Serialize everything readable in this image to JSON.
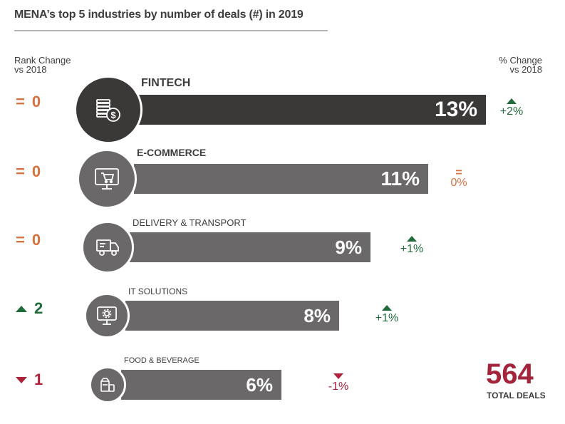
{
  "title": "MENA’s top 5 industries by number of deals (#) in 2019",
  "header_left": [
    "Rank Change",
    "vs 2018"
  ],
  "header_right": [
    "% Change",
    "vs 2018"
  ],
  "colors": {
    "orange": "#d8703f",
    "green": "#1f6b3a",
    "red": "#b0203a",
    "bar_dark": "#3b3838",
    "bar_gray": "#6a6868"
  },
  "chart_data": {
    "type": "bar",
    "title": "MENA’s top 5 industries by number of deals (#) in 2019",
    "categories": [
      "FINTECH",
      "E-COMMERCE",
      "DELIVERY & TRANSPORT",
      "IT SOLUTIONS",
      "FOOD & BEVERAGE"
    ],
    "values": [
      13,
      11,
      9,
      8,
      6
    ],
    "value_labels": [
      "13%",
      "11%",
      "9%",
      "8%",
      "6%"
    ],
    "rank_change": [
      {
        "symbol": "=",
        "value": "0",
        "direction": "same"
      },
      {
        "symbol": "=",
        "value": "0",
        "direction": "same"
      },
      {
        "symbol": "=",
        "value": "0",
        "direction": "same"
      },
      {
        "symbol": "▲",
        "value": "2",
        "direction": "up"
      },
      {
        "symbol": "▼",
        "value": "1",
        "direction": "down"
      }
    ],
    "pct_change": [
      {
        "label": "+2%",
        "direction": "up"
      },
      {
        "label": "0%",
        "direction": "same"
      },
      {
        "label": "+1%",
        "direction": "up"
      },
      {
        "label": "+1%",
        "direction": "up"
      },
      {
        "label": "-1%",
        "direction": "down"
      }
    ],
    "icons": [
      "coins-dollar-icon",
      "monitor-cart-icon",
      "delivery-truck-icon",
      "monitor-gear-icon",
      "food-box-icon"
    ]
  },
  "total": {
    "value": "564",
    "label": "TOTAL DEALS"
  }
}
